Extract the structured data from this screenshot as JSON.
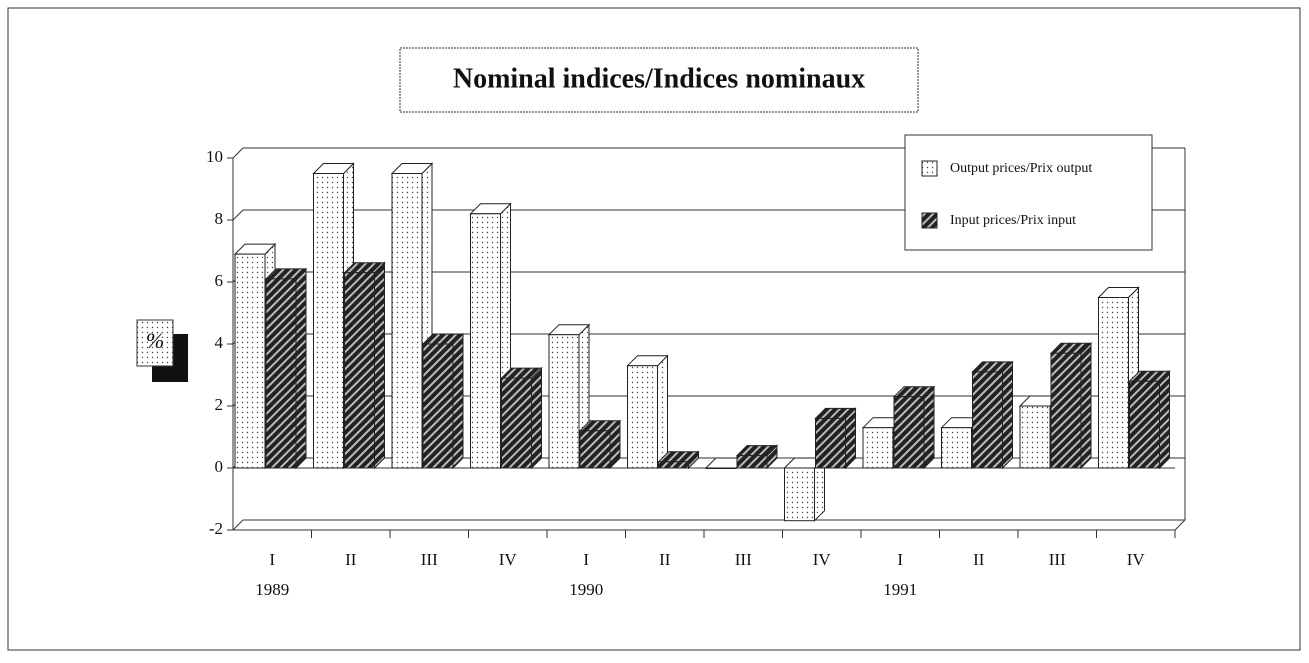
{
  "chart_data": {
    "type": "bar3d",
    "title": "Nominal indices/Indices nominaux",
    "y_label": "%",
    "categories": [
      "I",
      "II",
      "III",
      "IV",
      "I",
      "II",
      "III",
      "IV",
      "I",
      "II",
      "III",
      "IV"
    ],
    "category_years": [
      "1989",
      null,
      null,
      null,
      "1990",
      null,
      null,
      null,
      "1991",
      null,
      null,
      null
    ],
    "series": [
      {
        "name": "Output prices/Prix output",
        "color": "#ffffff",
        "values": [
          6.9,
          9.5,
          9.5,
          8.2,
          4.3,
          3.3,
          0,
          -1.7,
          1.3,
          1.3,
          2.0,
          5.5
        ]
      },
      {
        "name": "Input prices/Prix input",
        "color": "#333333",
        "values": [
          6.1,
          6.3,
          4.0,
          2.9,
          1.2,
          0.2,
          0.4,
          1.6,
          2.3,
          3.1,
          3.7,
          2.8
        ]
      }
    ],
    "ylim": [
      -2,
      10
    ],
    "yticks": [
      -2,
      0,
      2,
      4,
      6,
      8,
      10
    ],
    "grid": true,
    "legend": "top-right"
  }
}
